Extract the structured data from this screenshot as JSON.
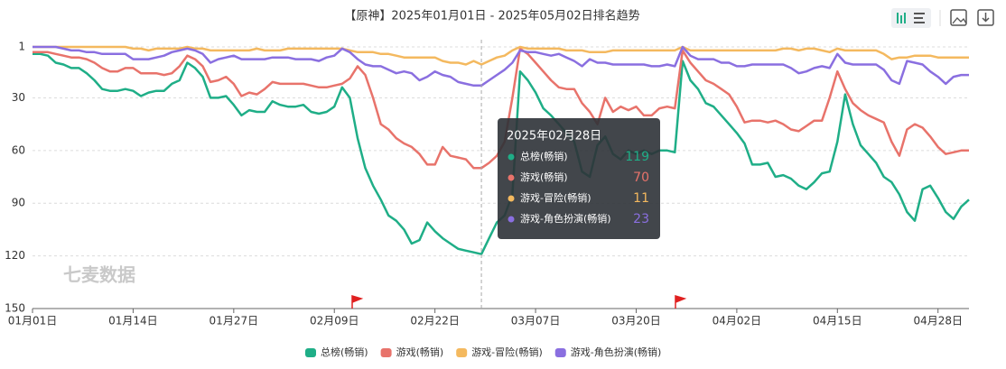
{
  "chart_data": {
    "type": "line",
    "title": "【原神】2025年01月01日 - 2025年05月02日排名趋势",
    "watermark": "七麦数据",
    "tooltip_title": "2025年02月28日",
    "categories": [
      "01月01日",
      null,
      null,
      null,
      null,
      null,
      null,
      null,
      null,
      null,
      null,
      null,
      null,
      "01月14日",
      null,
      null,
      null,
      null,
      null,
      null,
      null,
      null,
      null,
      null,
      null,
      null,
      "01月27日",
      null,
      null,
      null,
      null,
      null,
      null,
      null,
      null,
      null,
      null,
      null,
      null,
      "02月09日",
      null,
      null,
      null,
      null,
      null,
      null,
      null,
      null,
      null,
      null,
      null,
      null,
      "02月22日",
      null,
      null,
      null,
      null,
      null,
      null,
      null,
      null,
      null,
      null,
      null,
      null,
      "03月07日",
      null,
      null,
      null,
      null,
      null,
      null,
      null,
      null,
      null,
      null,
      null,
      null,
      "03月20日",
      null,
      null,
      null,
      null,
      null,
      null,
      null,
      null,
      null,
      null,
      null,
      null,
      "04月02日",
      null,
      null,
      null,
      null,
      null,
      null,
      null,
      null,
      null,
      null,
      null,
      null,
      "04月15日",
      null,
      null,
      null,
      null,
      null,
      null,
      null,
      null,
      null,
      null,
      null,
      null,
      "04月28日",
      null,
      null,
      null,
      null
    ],
    "ylim": [
      1,
      150
    ],
    "yticks": [
      1,
      30,
      60,
      90,
      120,
      150
    ],
    "y_inverted": true,
    "grid": true,
    "series": [
      {
        "name": "总榜(畅销)",
        "color": "#1fae87",
        "values": [
          5,
          5,
          6,
          10,
          11,
          13,
          13,
          16,
          20,
          25,
          26,
          26,
          25,
          26,
          29,
          27,
          26,
          26,
          22,
          20,
          10,
          13,
          18,
          30,
          30,
          29,
          34,
          40,
          37,
          38,
          38,
          32,
          34,
          35,
          35,
          34,
          38,
          39,
          38,
          35,
          24,
          30,
          53,
          70,
          80,
          88,
          97,
          100,
          105,
          113,
          111,
          101,
          106,
          110,
          113,
          116,
          117,
          118,
          119,
          110,
          101,
          97,
          85,
          15,
          20,
          27,
          36,
          40,
          45,
          50,
          55,
          72,
          75,
          57,
          52,
          62,
          65,
          60,
          62,
          60,
          62,
          60,
          60,
          61,
          9,
          20,
          25,
          33,
          35,
          40,
          45,
          50,
          56,
          68,
          68,
          67,
          75,
          74,
          76,
          80,
          82,
          78,
          73,
          72,
          55,
          28,
          45,
          57,
          62,
          67,
          75,
          78,
          85,
          95,
          100,
          82,
          80,
          87,
          95,
          99,
          92,
          88
        ]
      },
      {
        "name": "游戏(畅销)",
        "color": "#e8736b",
        "values": [
          4,
          4,
          4,
          5,
          6,
          7,
          7,
          8,
          10,
          13,
          15,
          15,
          13,
          13,
          16,
          16,
          16,
          17,
          16,
          12,
          6,
          8,
          12,
          21,
          20,
          18,
          22,
          29,
          27,
          28,
          25,
          21,
          22,
          22,
          22,
          22,
          23,
          24,
          24,
          23,
          22,
          19,
          12,
          17,
          30,
          45,
          48,
          53,
          56,
          58,
          62,
          68,
          68,
          58,
          63,
          64,
          65,
          70,
          70,
          67,
          63,
          55,
          30,
          2,
          5,
          10,
          15,
          20,
          24,
          25,
          25,
          33,
          38,
          45,
          30,
          38,
          35,
          37,
          35,
          40,
          40,
          36,
          35,
          36,
          3,
          10,
          15,
          20,
          22,
          25,
          28,
          35,
          44,
          43,
          43,
          44,
          43,
          45,
          48,
          49,
          46,
          43,
          43,
          30,
          15,
          25,
          33,
          37,
          40,
          42,
          44,
          55,
          63,
          48,
          45,
          47,
          52,
          58,
          62,
          61,
          60,
          60
        ]
      },
      {
        "name": "游戏-冒险(畅销)",
        "color": "#f4b95f",
        "values": [
          1,
          1,
          1,
          1,
          1,
          1,
          1,
          1,
          1,
          1,
          1,
          1,
          1,
          2,
          2,
          3,
          2,
          2,
          2,
          2,
          1,
          2,
          2,
          3,
          3,
          3,
          3,
          3,
          3,
          2,
          3,
          3,
          3,
          2,
          2,
          2,
          2,
          2,
          2,
          2,
          2,
          3,
          4,
          4,
          4,
          5,
          5,
          6,
          7,
          7,
          7,
          7,
          7,
          9,
          10,
          10,
          11,
          9,
          11,
          9,
          7,
          6,
          3,
          1,
          2,
          2,
          2,
          2,
          2,
          3,
          3,
          3,
          4,
          4,
          4,
          3,
          3,
          3,
          3,
          3,
          3,
          3,
          3,
          3,
          1,
          3,
          3,
          3,
          3,
          3,
          3,
          3,
          3,
          3,
          3,
          3,
          3,
          2,
          2,
          3,
          2,
          2,
          3,
          4,
          2,
          3,
          3,
          3,
          3,
          3,
          5,
          8,
          7,
          7,
          6,
          6,
          6,
          7,
          7,
          7,
          7,
          7
        ]
      },
      {
        "name": "游戏-角色扮演(畅销)",
        "color": "#8a6fe0",
        "values": [
          1,
          1,
          1,
          1,
          2,
          3,
          3,
          4,
          4,
          5,
          5,
          5,
          5,
          8,
          8,
          8,
          7,
          6,
          4,
          3,
          2,
          3,
          5,
          10,
          8,
          7,
          6,
          8,
          8,
          8,
          8,
          7,
          7,
          7,
          8,
          8,
          8,
          9,
          7,
          6,
          2,
          4,
          8,
          11,
          12,
          12,
          14,
          16,
          15,
          16,
          20,
          18,
          15,
          17,
          18,
          21,
          22,
          23,
          23,
          20,
          17,
          14,
          10,
          3,
          4,
          4,
          5,
          6,
          5,
          7,
          9,
          12,
          8,
          10,
          10,
          11,
          11,
          11,
          11,
          11,
          12,
          12,
          11,
          12,
          1,
          6,
          8,
          8,
          8,
          10,
          10,
          12,
          12,
          11,
          11,
          11,
          11,
          11,
          13,
          16,
          15,
          13,
          12,
          13,
          5,
          10,
          11,
          11,
          11,
          11,
          14,
          20,
          22,
          9,
          10,
          11,
          15,
          18,
          22,
          18,
          17,
          17
        ]
      }
    ]
  }
}
